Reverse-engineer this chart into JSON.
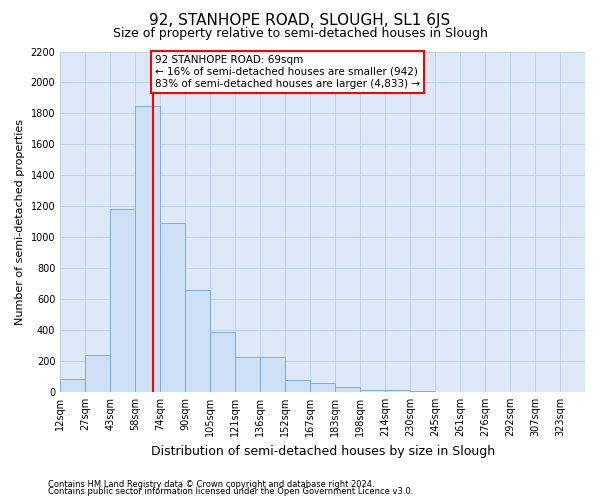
{
  "title": "92, STANHOPE ROAD, SLOUGH, SL1 6JS",
  "subtitle": "Size of property relative to semi-detached houses in Slough",
  "xlabel": "Distribution of semi-detached houses by size in Slough",
  "ylabel": "Number of semi-detached properties",
  "footnote1": "Contains HM Land Registry data © Crown copyright and database right 2024.",
  "footnote2": "Contains public sector information licensed under the Open Government Licence v3.0.",
  "annotation_line1": "92 STANHOPE ROAD: 69sqm",
  "annotation_line2": "← 16% of semi-detached houses are smaller (942)",
  "annotation_line3": "83% of semi-detached houses are larger (4,833) →",
  "bar_labels": [
    "12sqm",
    "27sqm",
    "43sqm",
    "58sqm",
    "74sqm",
    "90sqm",
    "105sqm",
    "121sqm",
    "136sqm",
    "152sqm",
    "167sqm",
    "183sqm",
    "198sqm",
    "214sqm",
    "230sqm",
    "245sqm",
    "261sqm",
    "276sqm",
    "292sqm",
    "307sqm",
    "323sqm"
  ],
  "bar_heights": [
    85,
    240,
    1180,
    1850,
    1090,
    660,
    390,
    225,
    225,
    75,
    55,
    30,
    15,
    15,
    5,
    0,
    0,
    0,
    0,
    0,
    0
  ],
  "bar_color": "#ccdff5",
  "bar_edge_color": "#7bafd4",
  "red_line_bin": 4,
  "ylim": [
    0,
    2200
  ],
  "yticks": [
    0,
    200,
    400,
    600,
    800,
    1000,
    1200,
    1400,
    1600,
    1800,
    2000,
    2200
  ],
  "grid_color": "#c0d0e8",
  "background_color": "#dce8f5",
  "title_fontsize": 11,
  "subtitle_fontsize": 9,
  "ylabel_fontsize": 8,
  "xlabel_fontsize": 9,
  "tick_fontsize": 7,
  "footnote_fontsize": 6,
  "annot_fontsize": 7.5
}
